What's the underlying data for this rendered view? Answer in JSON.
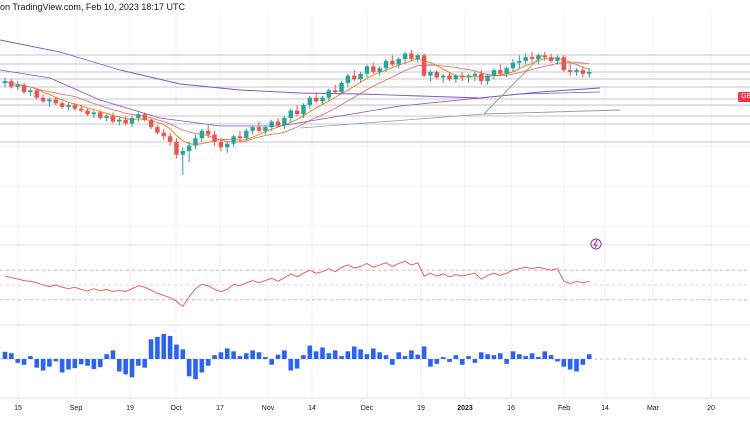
{
  "header": {
    "text": "on TradingView.com, Feb 10, 2023 18:17 UTC"
  },
  "price_tag": {
    "label": "GB",
    "color": "#f23645"
  },
  "colors": {
    "up": "#26a69a",
    "down": "#ef5350",
    "ma_fast": "#f57c00",
    "ma_mid": "#e57373",
    "ma_slow": "#7e57c2",
    "rsi": "#ef5350",
    "macd_hist": "#2962ff",
    "grid": "#d1d4dc",
    "event": "#9c27b0"
  },
  "event_icon": "lightning-icon",
  "chart_data": [
    {
      "type": "candlestick",
      "panel": "price",
      "x_axis": {
        "ticks": [
          "15",
          "Sep",
          "19",
          "Oct",
          "17",
          "Nov",
          "14",
          "Dec",
          "19",
          "2023",
          "16",
          "Feb",
          "14",
          "Mar",
          "20"
        ]
      },
      "y_range": [
        0,
        100
      ],
      "candles": [
        [
          81,
          84,
          79,
          82
        ],
        [
          82,
          83,
          78,
          79
        ],
        [
          79,
          82,
          77,
          80
        ],
        [
          80,
          81,
          75,
          76
        ],
        [
          76,
          78,
          74,
          77
        ],
        [
          77,
          78,
          72,
          73
        ],
        [
          73,
          75,
          70,
          71
        ],
        [
          71,
          73,
          68,
          72
        ],
        [
          72,
          73,
          69,
          70
        ],
        [
          70,
          71,
          67,
          68
        ],
        [
          68,
          70,
          66,
          69
        ],
        [
          69,
          70,
          66,
          67
        ],
        [
          67,
          69,
          65,
          66
        ],
        [
          66,
          67,
          63,
          64
        ],
        [
          64,
          66,
          62,
          65
        ],
        [
          65,
          66,
          61,
          62
        ],
        [
          62,
          64,
          60,
          63
        ],
        [
          63,
          65,
          59,
          60
        ],
        [
          60,
          62,
          58,
          61
        ],
        [
          61,
          63,
          58,
          59
        ],
        [
          59,
          63,
          57,
          62
        ],
        [
          62,
          65,
          60,
          64
        ],
        [
          64,
          65,
          60,
          61
        ],
        [
          61,
          62,
          56,
          57
        ],
        [
          57,
          58,
          53,
          54
        ],
        [
          54,
          56,
          50,
          52
        ],
        [
          52,
          54,
          47,
          49
        ],
        [
          49,
          51,
          40,
          42
        ],
        [
          42,
          46,
          31,
          44
        ],
        [
          44,
          49,
          38,
          47
        ],
        [
          47,
          53,
          45,
          51
        ],
        [
          51,
          56,
          49,
          55
        ],
        [
          55,
          58,
          51,
          53
        ],
        [
          53,
          55,
          47,
          49
        ],
        [
          49,
          51,
          44,
          46
        ],
        [
          46,
          49,
          43,
          48
        ],
        [
          48,
          53,
          46,
          52
        ],
        [
          52,
          55,
          49,
          51
        ],
        [
          51,
          56,
          50,
          55
        ],
        [
          55,
          58,
          53,
          57
        ],
        [
          57,
          60,
          54,
          55
        ],
        [
          55,
          58,
          53,
          57
        ],
        [
          57,
          61,
          55,
          60
        ],
        [
          60,
          62,
          57,
          58
        ],
        [
          58,
          63,
          56,
          62
        ],
        [
          62,
          67,
          60,
          66
        ],
        [
          66,
          69,
          63,
          64
        ],
        [
          64,
          70,
          62,
          69
        ],
        [
          69,
          74,
          67,
          73
        ],
        [
          73,
          76,
          70,
          71
        ],
        [
          71,
          74,
          69,
          73
        ],
        [
          73,
          78,
          71,
          77
        ],
        [
          77,
          80,
          75,
          76
        ],
        [
          76,
          82,
          75,
          81
        ],
        [
          81,
          86,
          79,
          85
        ],
        [
          85,
          88,
          82,
          83
        ],
        [
          83,
          87,
          81,
          86
        ],
        [
          86,
          91,
          84,
          90
        ],
        [
          90,
          92,
          86,
          87
        ],
        [
          87,
          90,
          85,
          89
        ],
        [
          89,
          94,
          87,
          93
        ],
        [
          93,
          96,
          90,
          91
        ],
        [
          91,
          95,
          89,
          94
        ],
        [
          94,
          98,
          92,
          97
        ],
        [
          97,
          99,
          93,
          94
        ],
        [
          94,
          97,
          92,
          96
        ],
        [
          96,
          97,
          84,
          85
        ],
        [
          85,
          88,
          82,
          87
        ],
        [
          87,
          88,
          83,
          84
        ],
        [
          84,
          86,
          81,
          85
        ],
        [
          85,
          87,
          82,
          83
        ],
        [
          83,
          86,
          81,
          85
        ],
        [
          85,
          87,
          82,
          84
        ],
        [
          84,
          86,
          81,
          85
        ],
        [
          85,
          87,
          82,
          86
        ],
        [
          86,
          88,
          80,
          82
        ],
        [
          82,
          86,
          80,
          85
        ],
        [
          85,
          89,
          83,
          88
        ],
        [
          88,
          91,
          85,
          86
        ],
        [
          86,
          90,
          84,
          89
        ],
        [
          89,
          94,
          87,
          92
        ],
        [
          92,
          96,
          89,
          93
        ],
        [
          93,
          97,
          91,
          95
        ],
        [
          95,
          98,
          92,
          94
        ],
        [
          94,
          97,
          91,
          96
        ],
        [
          96,
          98,
          93,
          95
        ],
        [
          95,
          97,
          92,
          93
        ],
        [
          93,
          96,
          91,
          95
        ],
        [
          95,
          96,
          87,
          88
        ],
        [
          88,
          91,
          85,
          87
        ],
        [
          87,
          89,
          85,
          88
        ],
        [
          88,
          90,
          84,
          86
        ],
        [
          86,
          89,
          84,
          87
        ]
      ]
    },
    {
      "type": "line",
      "panel": "rsi",
      "y_range": [
        0,
        100
      ],
      "levels": [
        70,
        50,
        30
      ],
      "values": [
        62,
        60,
        58,
        56,
        55,
        53,
        50,
        48,
        50,
        47,
        45,
        47,
        44,
        42,
        45,
        42,
        44,
        41,
        43,
        41,
        45,
        49,
        47,
        43,
        39,
        36,
        33,
        28,
        21,
        34,
        45,
        51,
        49,
        44,
        41,
        44,
        51,
        49,
        53,
        56,
        53,
        56,
        59,
        55,
        60,
        65,
        61,
        66,
        70,
        66,
        68,
        72,
        68,
        74,
        77,
        73,
        75,
        79,
        74,
        77,
        80,
        75,
        79,
        82,
        77,
        80,
        62,
        66,
        62,
        65,
        61,
        64,
        62,
        64,
        66,
        58,
        63,
        66,
        63,
        66,
        70,
        72,
        74,
        72,
        74,
        72,
        70,
        72,
        55,
        52,
        55,
        53,
        55
      ]
    },
    {
      "type": "bar",
      "panel": "histogram",
      "y_range": [
        -10,
        10
      ],
      "values": [
        1.5,
        1.2,
        -0.8,
        -1.2,
        0.6,
        -1.8,
        -2.4,
        -1.6,
        -0.5,
        -2.8,
        -2.2,
        -1.9,
        -1.1,
        -1.4,
        -2.1,
        -1.7,
        1.0,
        1.8,
        -2.6,
        -3.2,
        -3.8,
        -1.4,
        -1.8,
        4.1,
        4.6,
        5.2,
        4.8,
        3.0,
        2.0,
        -3.6,
        -4.2,
        -2.8,
        -1.4,
        0.8,
        1.4,
        2.2,
        1.6,
        0.6,
        1.2,
        1.8,
        1.4,
        0.4,
        -1.2,
        0.9,
        1.8,
        -2.4,
        -2.0,
        0.8,
        2.8,
        1.6,
        2.4,
        1.2,
        1.8,
        0.6,
        1.6,
        2.6,
        2.0,
        1.0,
        2.2,
        1.4,
        0.8,
        -1.2,
        1.4,
        0.6,
        1.8,
        0.9,
        2.6,
        -1.6,
        -1.0,
        0.4,
        -0.6,
        0.8,
        -1.2,
        0.6,
        -0.8,
        1.4,
        1.0,
        0.8,
        1.2,
        -1.0,
        1.6,
        1.0,
        0.6,
        1.2,
        0.4,
        1.6,
        0.8,
        -0.5,
        -1.6,
        -2.2,
        -2.6,
        -1.2,
        1.0
      ]
    }
  ]
}
